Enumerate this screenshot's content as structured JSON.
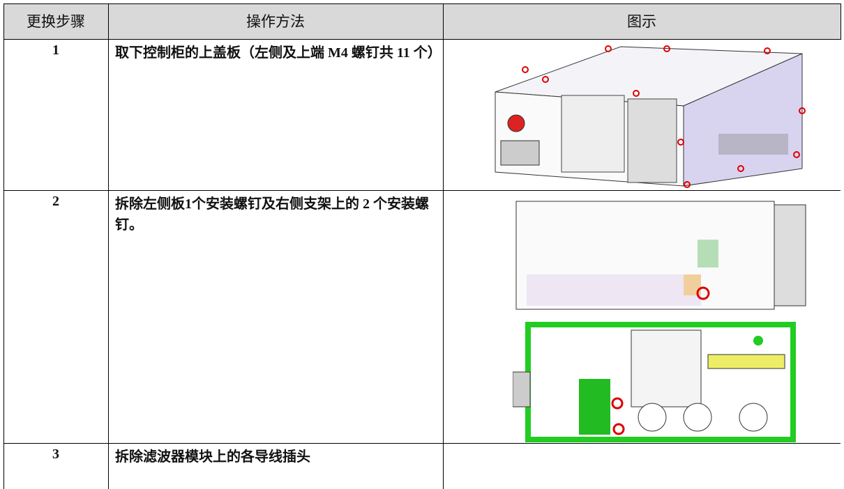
{
  "table": {
    "header": [
      "更换步骤",
      "操作方法",
      "图示"
    ],
    "rows": [
      [
        "1",
        "取下控制柜的上盖板（左侧及上端 M4 螺钉共 11 个）"
      ],
      [
        "2",
        "拆除左侧板1个安装螺钉及右侧支架上的 2 个安装螺钉。"
      ],
      [
        "3",
        "拆除滤波器模块上的各导线插头"
      ]
    ]
  }
}
